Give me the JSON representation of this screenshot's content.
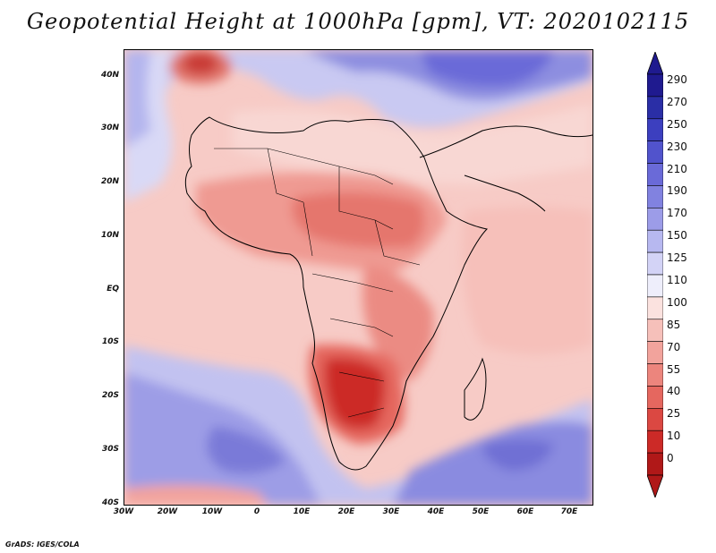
{
  "title": "Geopotential Height at 1000hPa [gpm], VT: 2020102115",
  "footer": "GrADS: IGES/COLA",
  "lat_labels": [
    "40N",
    "30N",
    "20N",
    "10N",
    "EQ",
    "10S",
    "20S",
    "30S",
    "40S"
  ],
  "lon_labels": [
    "30W",
    "20W",
    "10W",
    "0",
    "10E",
    "20E",
    "30E",
    "40E",
    "50E",
    "60E",
    "70E"
  ],
  "colorbar": {
    "labels": [
      "290",
      "270",
      "250",
      "230",
      "210",
      "190",
      "170",
      "150",
      "125",
      "110",
      "100",
      "85",
      "70",
      "55",
      "40",
      "25",
      "10",
      "0"
    ],
    "colors": [
      "#1f1a8f",
      "#2a2ea6",
      "#3c3fbf",
      "#5153cc",
      "#6a6ad8",
      "#8182e0",
      "#9c9ce8",
      "#b7b8f0",
      "#d3d3f6",
      "#eeeefb",
      "#fbe2df",
      "#f6c0ba",
      "#f2a39c",
      "#ec857d",
      "#e5675f",
      "#db4842",
      "#cc2a27",
      "#b01818"
    ]
  }
}
